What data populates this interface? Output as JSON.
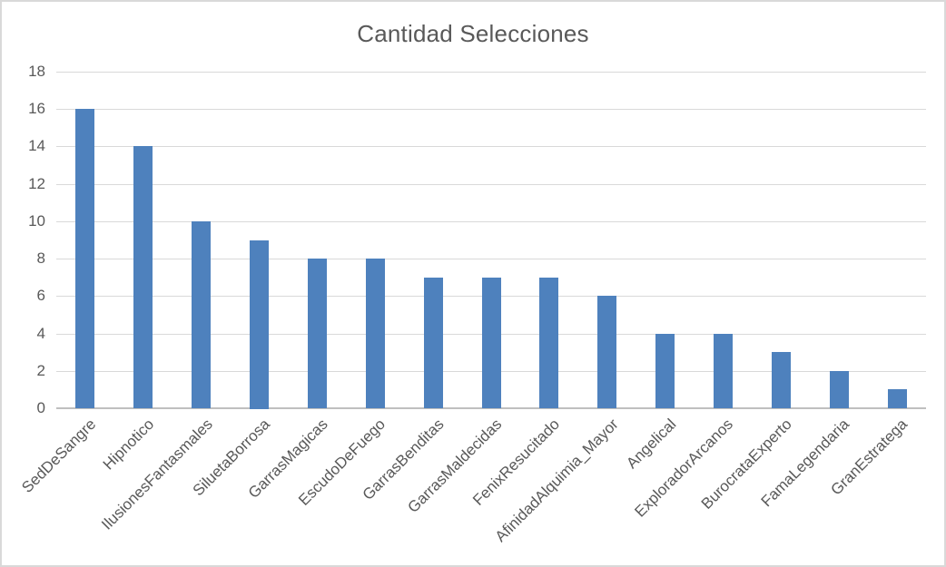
{
  "chart_data": {
    "type": "bar",
    "title": "Cantidad Selecciones",
    "categories": [
      "SedDeSangre",
      "Hipnotico",
      "IlusionesFantasmales",
      "SiluetaBorrosa",
      "GarrasMagicas",
      "EscudoDeFuego",
      "GarrasBenditas",
      "GarrasMaldecidas",
      "FenixResucitado",
      "AfinidadAlquimia_Mayor",
      "Angelical",
      "ExploradorArcanos",
      "BurocrataExperto",
      "FamaLegendaria",
      "GranEstratega"
    ],
    "values": [
      16,
      14,
      10,
      9,
      8,
      8,
      7,
      7,
      7,
      6,
      4,
      4,
      3,
      2,
      1
    ],
    "xlabel": "",
    "ylabel": "",
    "ylim": [
      0,
      18
    ],
    "ytick_step": 2,
    "grid": true,
    "legend": false,
    "bar_color": "#4E81BD",
    "gridline_color": "#D9D9D9",
    "axis_line_color": "#BFBFBF",
    "text_color": "#595959",
    "background_color": "#FFFFFF",
    "border_color": "#D9D9D9"
  }
}
